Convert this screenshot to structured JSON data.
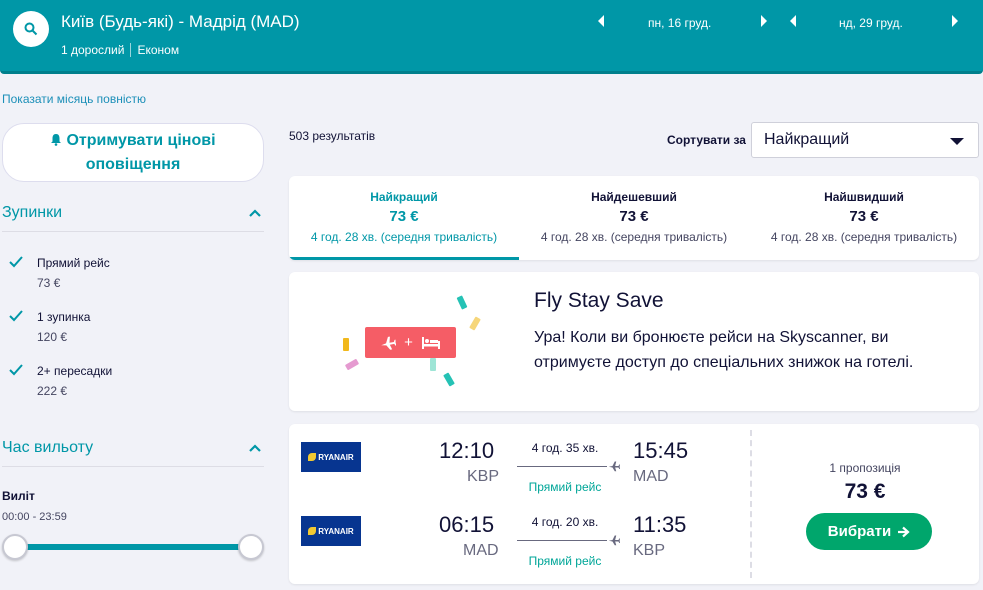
{
  "header": {
    "route": "Київ (Будь-які) - Мадрід (MAD)",
    "passengers": "1 дорослий",
    "cabin": "Економ",
    "depart_date": "пн, 16 груд.",
    "return_date": "нд, 29 груд."
  },
  "show_month_link": "Показати місяць повністю",
  "sidebar": {
    "alert_button": "Отримувати цінові оповіщення",
    "stops_title": "Зупинки",
    "stops": [
      {
        "label": "Прямий рейс",
        "price": "73 €",
        "checked": true
      },
      {
        "label": "1 зупинка",
        "price": "120 €",
        "checked": true
      },
      {
        "label": "2+ пересадки",
        "price": "222 €",
        "checked": true
      }
    ],
    "departure_title": "Час вильоту",
    "departure_label": "Виліт",
    "departure_range": "00:00 - 23:59",
    "slider_range": [
      0,
      1
    ]
  },
  "results": {
    "count": "503 результатів",
    "sort_label": "Сортувати за",
    "sort_value": "Найкращий"
  },
  "tabs": [
    {
      "label": "Найкращий",
      "price": "73 €",
      "duration": "4 год. 28 хв. (середня тривалість)",
      "active": true
    },
    {
      "label": "Найдешевший",
      "price": "73 €",
      "duration": "4 год. 28 хв. (середня тривалість)",
      "active": false
    },
    {
      "label": "Найшвидший",
      "price": "73 €",
      "duration": "4 год. 28 хв. (середня тривалість)",
      "active": false
    }
  ],
  "promo": {
    "title": "Fly Stay Save",
    "text": "Ура! Коли ви бронюєте рейси на Skyscanner, ви отримуєте доступ до спеціальних знижок на готелі.",
    "badge_plus": "+"
  },
  "flight_card": {
    "airline": "RYANAIR",
    "legs": [
      {
        "dep_time": "12:10",
        "dep_code": "KBP",
        "duration": "4 год. 35 хв.",
        "stops": "Прямий рейс",
        "arr_time": "15:45",
        "arr_code": "MAD"
      },
      {
        "dep_time": "06:15",
        "dep_code": "MAD",
        "duration": "4 год. 20 хв.",
        "stops": "Прямий рейс",
        "arr_time": "11:35",
        "arr_code": "KBP"
      }
    ],
    "offers": "1 пропозиція",
    "price": "73 €",
    "select_button": "Вибрати"
  },
  "colors": {
    "brand": "#0097a7",
    "select_button": "#00a66c",
    "promo_badge": "#f55d66",
    "direct": "#00a698"
  }
}
